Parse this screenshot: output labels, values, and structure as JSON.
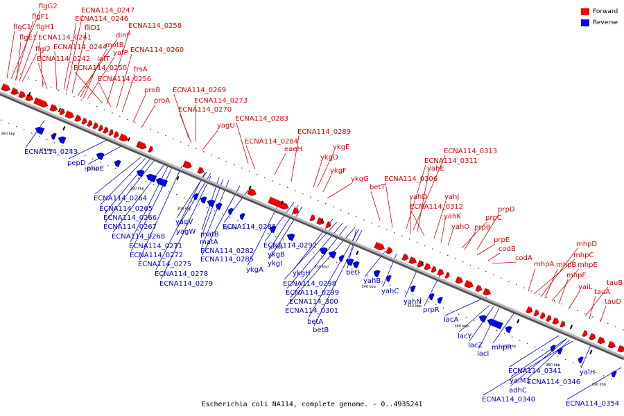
{
  "legend": {
    "forward": {
      "label": "Forward",
      "color": "#ff0000"
    },
    "reverse": {
      "label": "Reverse",
      "color": "#0000ff"
    }
  },
  "caption": "Escherichia coli NA114, complete genome. - 0..4935241",
  "colors": {
    "forward": "#ee0000",
    "reverse": "#0000ee",
    "backbone": "#777777"
  },
  "ticks": [
    "260 kbp",
    "270 kbp",
    "280 kbp",
    "290 kbp",
    "300 kbp",
    "310 kbp",
    "320 kbp",
    "330 kbp",
    "340 kbp",
    "350 kbp",
    "360 kbp",
    "370 kbp",
    "380 kbp",
    "390 kbp"
  ],
  "forward_labels": [
    "flgG2",
    "flgF1",
    "flgC1",
    "flgH1",
    "flgE1",
    "ECNA114_0241",
    "flgI2",
    "ECNA114_0242",
    "ECNA114_0244",
    "ECNA114_0247",
    "ECNA114_0246",
    "fliD1",
    "motB",
    "dinP",
    "lafT",
    "yafP",
    "ECNA114_0250",
    "ECNA114_0256",
    "ECNA114_0258",
    "ECNA114_0260",
    "frsA",
    "proB",
    "proA",
    "ECNA114_0269",
    "ECNA114_0273",
    "ECNA114_0270",
    "yagU",
    "ECNA114_0283",
    "ECNA114_0284",
    "eaeH",
    "ECNA114_0289",
    "ykgE",
    "ykgD",
    "ykgF",
    "ykgG",
    "betT",
    "ECNA114_0306",
    "ECNA114_0313",
    "ECNA114_0311",
    "yahE",
    "yahD",
    "yahJ",
    "ECNA114_0312",
    "yahK",
    "yahO",
    "prpD",
    "prpC",
    "prpB",
    "prpE",
    "codB",
    "codA",
    "mhpA",
    "mhpD",
    "mhpC",
    "mhpB",
    "mhpE",
    "mhpF",
    "yaiL",
    "tauB",
    "tauA",
    "tauD"
  ],
  "reverse_labels": [
    "ECNA114_0243",
    "pepD",
    "phoE",
    "ECNA114_0264",
    "ECNA114_0265",
    "ECNA114_0266",
    "ECNA114_0267",
    "ECNA114_0268",
    "ECNA114_0271",
    "ECNA114_0272",
    "ECNA114_0275",
    "ECNA114_0278",
    "ECNA114_0279",
    "yagV",
    "yagW",
    "matB",
    "matA",
    "ECNA114_0282",
    "ECNA114_0285",
    "ECNA114_0286",
    "ECNA114_0292",
    "ykgB",
    "ykgI",
    "ykgA",
    "ykgH",
    "ECNA114_0298",
    "ECNA114_0299",
    "ECNA114_300",
    "ECNA114_0301",
    "betA",
    "betB",
    "betI",
    "yahB",
    "yahC",
    "yahN",
    "prpR",
    "lacA",
    "lacY",
    "lacZ",
    "lacI",
    "mhpR",
    "ECNA114_0341",
    "yaiM1",
    "ECNA114_0346",
    "adhC",
    "ECNA114_0340",
    "yaiH",
    "ECNA114_0354"
  ]
}
